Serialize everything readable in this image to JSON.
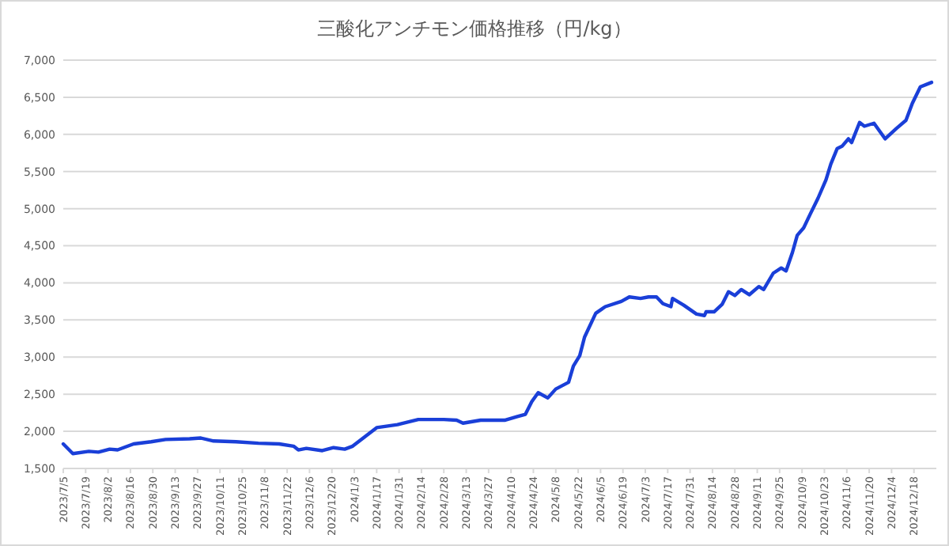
{
  "chart_data": {
    "type": "line",
    "title": "三酸化アンチモン価格推移（円/kg）",
    "grid": "y",
    "marker": "none",
    "line_style": "solid",
    "xlim": [
      "2023-07-05",
      "2025-01-01"
    ],
    "xticks": [
      {
        "value": "2023-07-05",
        "label": "2023/7/5"
      },
      {
        "value": "2023-07-19",
        "label": "2023/7/19"
      },
      {
        "value": "2023-08-02",
        "label": "2023/8/2"
      },
      {
        "value": "2023-08-16",
        "label": "2023/8/16"
      },
      {
        "value": "2023-08-30",
        "label": "2023/8/30"
      },
      {
        "value": "2023-09-13",
        "label": "2023/9/13"
      },
      {
        "value": "2023-09-27",
        "label": "2023/9/27"
      },
      {
        "value": "2023-10-11",
        "label": "2023/10/11"
      },
      {
        "value": "2023-10-25",
        "label": "2023/10/25"
      },
      {
        "value": "2023-11-08",
        "label": "2023/11/8"
      },
      {
        "value": "2023-11-22",
        "label": "2023/11/22"
      },
      {
        "value": "2023-12-06",
        "label": "2023/12/6"
      },
      {
        "value": "2023-12-20",
        "label": "2023/12/20"
      },
      {
        "value": "2024-01-03",
        "label": "2024/1/3"
      },
      {
        "value": "2024-01-17",
        "label": "2024/1/17"
      },
      {
        "value": "2024-01-31",
        "label": "2024/1/31"
      },
      {
        "value": "2024-02-14",
        "label": "2024/2/14"
      },
      {
        "value": "2024-02-28",
        "label": "2024/2/28"
      },
      {
        "value": "2024-03-13",
        "label": "2024/3/13"
      },
      {
        "value": "2024-03-27",
        "label": "2024/3/27"
      },
      {
        "value": "2024-04-10",
        "label": "2024/4/10"
      },
      {
        "value": "2024-04-24",
        "label": "2024/4/24"
      },
      {
        "value": "2024-05-08",
        "label": "2024/5/8"
      },
      {
        "value": "2024-05-22",
        "label": "2024/5/22"
      },
      {
        "value": "2024-06-05",
        "label": "2024/6/5"
      },
      {
        "value": "2024-06-19",
        "label": "2024/6/19"
      },
      {
        "value": "2024-07-03",
        "label": "2024/7/3"
      },
      {
        "value": "2024-07-17",
        "label": "2024/7/17"
      },
      {
        "value": "2024-07-31",
        "label": "2024/7/31"
      },
      {
        "value": "2024-08-14",
        "label": "2024/8/14"
      },
      {
        "value": "2024-08-28",
        "label": "2024/8/28"
      },
      {
        "value": "2024-09-11",
        "label": "2024/9/11"
      },
      {
        "value": "2024-09-25",
        "label": "2024/9/25"
      },
      {
        "value": "2024-10-09",
        "label": "2024/10/9"
      },
      {
        "value": "2024-10-23",
        "label": "2024/10/23"
      },
      {
        "value": "2024-11-06",
        "label": "2024/11/6"
      },
      {
        "value": "2024-11-20",
        "label": "2024/11/20"
      },
      {
        "value": "2024-12-04",
        "label": "2024/12/4"
      },
      {
        "value": "2024-12-18",
        "label": "2024/12/18"
      }
    ],
    "ylim": [
      1500,
      7000
    ],
    "yticks": [
      {
        "value": 1500,
        "label": "1,500"
      },
      {
        "value": 2000,
        "label": "2,000"
      },
      {
        "value": 2500,
        "label": "2,500"
      },
      {
        "value": 3000,
        "label": "3,000"
      },
      {
        "value": 3500,
        "label": "3,500"
      },
      {
        "value": 4000,
        "label": "4,000"
      },
      {
        "value": 4500,
        "label": "4,500"
      },
      {
        "value": 5000,
        "label": "5,000"
      },
      {
        "value": 5500,
        "label": "5,500"
      },
      {
        "value": 6000,
        "label": "6,000"
      },
      {
        "value": 6500,
        "label": "6,500"
      },
      {
        "value": 7000,
        "label": "7,000"
      }
    ],
    "x": [
      "2023-07-05",
      "2023-07-11",
      "2023-07-21",
      "2023-07-27",
      "2023-08-03",
      "2023-08-08",
      "2023-08-18",
      "2023-08-29",
      "2023-09-07",
      "2023-09-22",
      "2023-09-29",
      "2023-10-07",
      "2023-10-21",
      "2023-11-04",
      "2023-11-17",
      "2023-11-26",
      "2023-11-29",
      "2023-12-04",
      "2023-12-14",
      "2023-12-21",
      "2023-12-28",
      "2024-01-02",
      "2024-01-17",
      "2024-01-30",
      "2024-02-12",
      "2024-02-28",
      "2024-03-07",
      "2024-03-11",
      "2024-03-22",
      "2024-04-06",
      "2024-04-14",
      "2024-04-19",
      "2024-04-23",
      "2024-04-27",
      "2024-05-03",
      "2024-05-08",
      "2024-05-16",
      "2024-05-19",
      "2024-05-23",
      "2024-05-26",
      "2024-06-02",
      "2024-06-08",
      "2024-06-18",
      "2024-06-23",
      "2024-06-30",
      "2024-07-05",
      "2024-07-10",
      "2024-07-14",
      "2024-07-19",
      "2024-07-20",
      "2024-07-27",
      "2024-08-04",
      "2024-08-09",
      "2024-08-10",
      "2024-08-15",
      "2024-08-20",
      "2024-08-24",
      "2024-08-28",
      "2024-09-01",
      "2024-09-06",
      "2024-09-12",
      "2024-09-15",
      "2024-09-21",
      "2024-09-26",
      "2024-09-29",
      "2024-10-03",
      "2024-10-06",
      "2024-10-10",
      "2024-10-14",
      "2024-10-19",
      "2024-10-24",
      "2024-10-27",
      "2024-10-31",
      "2024-11-03",
      "2024-11-07",
      "2024-11-09",
      "2024-11-14",
      "2024-11-17",
      "2024-11-23",
      "2024-11-30",
      "2024-12-07",
      "2024-12-13",
      "2024-12-17",
      "2024-12-22",
      "2024-12-29"
    ],
    "series": [
      {
        "color": "#1a3fd8",
        "values": [
          1830,
          1700,
          1730,
          1720,
          1760,
          1750,
          1830,
          1860,
          1890,
          1900,
          1910,
          1870,
          1860,
          1840,
          1830,
          1800,
          1750,
          1770,
          1740,
          1780,
          1760,
          1800,
          2050,
          2090,
          2160,
          2160,
          2150,
          2110,
          2150,
          2150,
          2200,
          2230,
          2400,
          2520,
          2450,
          2570,
          2660,
          2880,
          3020,
          3270,
          3590,
          3680,
          3750,
          3810,
          3790,
          3810,
          3810,
          3720,
          3680,
          3790,
          3700,
          3580,
          3560,
          3610,
          3610,
          3710,
          3880,
          3830,
          3910,
          3840,
          3950,
          3910,
          4130,
          4200,
          4160,
          4410,
          4640,
          4740,
          4920,
          5140,
          5390,
          5600,
          5810,
          5840,
          5940,
          5890,
          6160,
          6110,
          6150,
          5940,
          6080,
          6190,
          6420,
          6640,
          6700
        ]
      }
    ]
  }
}
